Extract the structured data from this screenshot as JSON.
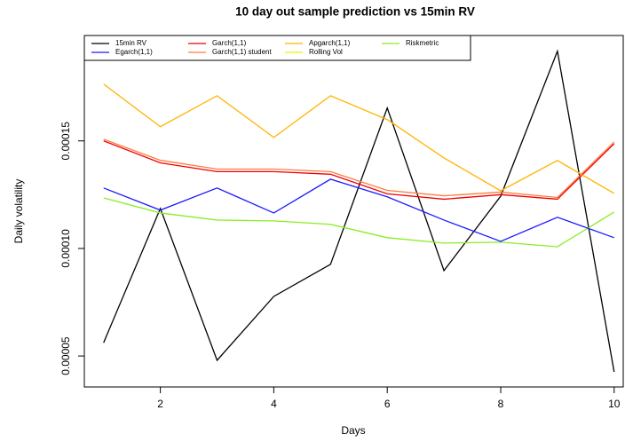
{
  "chart_data": {
    "type": "line",
    "title": "10 day out sample prediction vs 15min RV",
    "x_label": "Days",
    "y_label": "Daily volatility",
    "x": [
      1,
      2,
      3,
      4,
      5,
      6,
      7,
      8,
      9,
      10
    ],
    "xlim": [
      0.66,
      10.16
    ],
    "ylim": [
      3.56e-05,
      0.000199
    ],
    "xticks": [
      2,
      4,
      6,
      8,
      10
    ],
    "yticks": [
      {
        "value": 5e-05,
        "label": "0.00005"
      },
      {
        "value": 0.0001,
        "label": "0.00010"
      },
      {
        "value": 0.00015,
        "label": "0.00015"
      }
    ],
    "series": [
      {
        "name": "15min RV",
        "color": "#000000",
        "values": [
          5.62e-05,
          0.0001186,
          4.8e-05,
          7.77e-05,
          9.26e-05,
          0.0001653,
          8.97e-05,
          0.0001243,
          0.0001917,
          4.26e-05
        ]
      },
      {
        "name": "Garch(1,1)",
        "color": "#ee0000",
        "values": [
          0.00015,
          0.0001398,
          0.0001357,
          0.0001357,
          0.0001345,
          0.0001254,
          0.0001229,
          0.000125,
          0.0001229,
          0.0001487
        ]
      },
      {
        "name": "Apgarch(1,1)",
        "color": "#ffb400",
        "values": [
          0.0001764,
          0.0001566,
          0.000171,
          0.0001516,
          0.000171,
          0.0001599,
          0.0001421,
          0.0001268,
          0.0001409,
          0.0001256
        ]
      },
      {
        "name": "Riskmetric",
        "color": "#88ee22",
        "values": [
          0.0001235,
          0.0001165,
          0.0001132,
          0.0001128,
          0.0001112,
          0.000105,
          0.0001025,
          0.0001029,
          0.0001008,
          0.0001169
        ]
      },
      {
        "name": "Egarch(1,1)",
        "color": "#1a1aff",
        "values": [
          0.0001281,
          0.0001178,
          0.0001281,
          0.0001165,
          0.0001322,
          0.000124,
          0.0001132,
          0.0001033,
          0.0001145,
          0.000105
        ]
      },
      {
        "name": "Garch(1,1) student",
        "color": "#ff7a40",
        "values": [
          0.0001508,
          0.000141,
          0.0001369,
          0.0001369,
          0.0001357,
          0.000127,
          0.0001245,
          0.0001262,
          0.0001237,
          0.0001495
        ]
      },
      {
        "name": "Rolling Vol",
        "color": "#f0f000",
        "values": [
          null,
          null,
          null,
          null,
          null,
          null,
          null,
          null,
          null,
          null
        ]
      }
    ]
  }
}
